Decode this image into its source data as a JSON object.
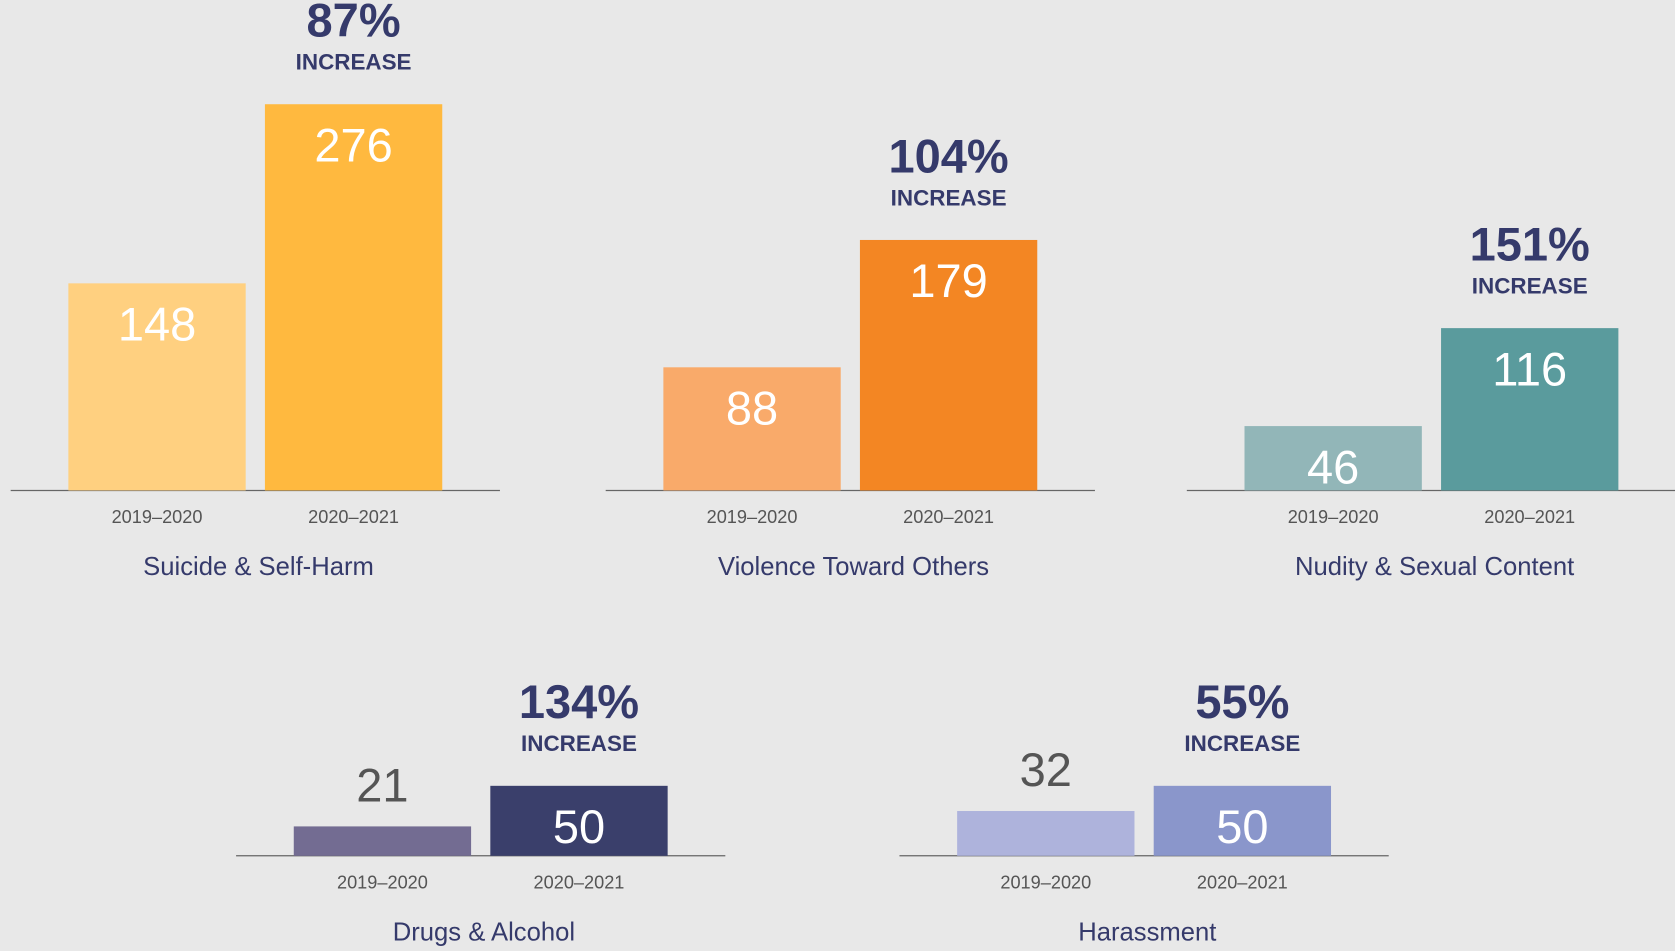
{
  "chart_data": [
    {
      "type": "bar",
      "title": "Suicide & Self-Harm",
      "categories": [
        "2019–2020",
        "2020–2021"
      ],
      "values": [
        148,
        276
      ],
      "colors": [
        "#ffd080",
        "#ffb93f"
      ],
      "annotation": "87%",
      "annotation_label": "INCREASE"
    },
    {
      "type": "bar",
      "title": "Violence Toward Others",
      "categories": [
        "2019–2020",
        "2020–2021"
      ],
      "values": [
        88,
        179
      ],
      "colors": [
        "#f9aa6a",
        "#f38623"
      ],
      "annotation": "104%",
      "annotation_label": "INCREASE"
    },
    {
      "type": "bar",
      "title": "Nudity & Sexual Content",
      "categories": [
        "2019–2020",
        "2020–2021"
      ],
      "values": [
        46,
        116
      ],
      "colors": [
        "#92b6b8",
        "#5a9b9d"
      ],
      "annotation": "151%",
      "annotation_label": "INCREASE"
    },
    {
      "type": "bar",
      "title": "Drugs & Alcohol",
      "categories": [
        "2019–2020",
        "2020–2021"
      ],
      "values": [
        21,
        50
      ],
      "colors": [
        "#736c92",
        "#3a3f6b"
      ],
      "annotation": "134%",
      "annotation_label": "INCREASE"
    },
    {
      "type": "bar",
      "title": "Harassment",
      "categories": [
        "2019–2020",
        "2020–2021"
      ],
      "values": [
        32,
        50
      ],
      "colors": [
        "#aeb3dc",
        "#8a96cb"
      ],
      "annotation": "55%",
      "annotation_label": "INCREASE"
    }
  ]
}
